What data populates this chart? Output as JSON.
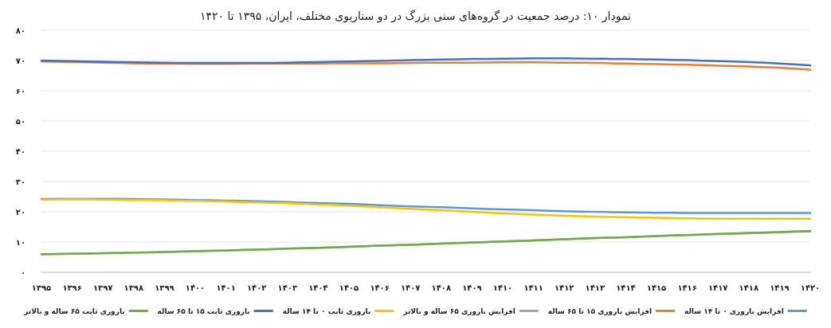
{
  "chart_data": {
    "type": "line",
    "title": "نمودار ۱۰: درصد جمعیت در گروه‌های سنی بزرگ در دو سناریوی مختلف، ایران، ۱۳۹۵ تا ۱۴۲۰",
    "categories": [
      "۱۳۹۵",
      "۱۳۹۶",
      "۱۳۹۷",
      "۱۳۹۸",
      "۱۳۹۹",
      "۱۴۰۰",
      "۱۴۰۱",
      "۱۴۰۲",
      "۱۴۰۳",
      "۱۴۰۴",
      "۱۴۰۵",
      "۱۴۰۶",
      "۱۴۰۷",
      "۱۴۰۸",
      "۱۴۰۹",
      "۱۴۱۰",
      "۱۴۱۱",
      "۱۴۱۲",
      "۱۴۱۳",
      "۱۴۱۴",
      "۱۴۱۵",
      "۱۴۱۶",
      "۱۴۱۷",
      "۱۴۱۸",
      "۱۴۱۹",
      "۱۴۲۰"
    ],
    "series": [
      {
        "name": "افزایش باروری ۰ تا ۱۴ ساله",
        "color": "#5b9bd5",
        "values": [
          24.2,
          24.3,
          24.3,
          24.2,
          24.1,
          23.9,
          23.7,
          23.5,
          23.2,
          22.9,
          22.6,
          22.2,
          21.8,
          21.5,
          21.1,
          20.8,
          20.5,
          20.2,
          20.0,
          19.8,
          19.7,
          19.6,
          19.6,
          19.6,
          19.6,
          19.6
        ]
      },
      {
        "name": "افزایش باروری ۱۵ تا ۶۵ ساله",
        "color": "#ed7d31",
        "values": [
          69.7,
          69.5,
          69.3,
          69.1,
          69.0,
          68.9,
          68.9,
          69.0,
          69.0,
          69.0,
          69.1,
          69.1,
          69.2,
          69.3,
          69.3,
          69.4,
          69.4,
          69.3,
          69.2,
          69.0,
          68.8,
          68.6,
          68.3,
          68.0,
          67.6,
          67.0
        ]
      },
      {
        "name": "افزایش باروری ۶۵ ساله و بالاتر",
        "color": "#a5a5a5",
        "values": [
          6.0,
          6.1,
          6.3,
          6.5,
          6.7,
          7.0,
          7.2,
          7.5,
          7.8,
          8.1,
          8.4,
          8.8,
          9.1,
          9.5,
          9.8,
          10.2,
          10.5,
          10.9,
          11.3,
          11.6,
          12.0,
          12.3,
          12.6,
          12.9,
          13.2,
          13.5
        ]
      },
      {
        "name": "باروری ثابت ۰ تا ۱۴ ساله",
        "color": "#ffc000",
        "values": [
          24.0,
          24.1,
          24.0,
          23.9,
          23.8,
          23.6,
          23.4,
          23.1,
          22.8,
          22.4,
          22.0,
          21.5,
          21.0,
          20.5,
          20.0,
          19.5,
          19.1,
          18.7,
          18.4,
          18.2,
          18.0,
          17.8,
          17.7,
          17.7,
          17.7,
          17.7
        ]
      },
      {
        "name": "باروری ثابت ۱۵ تا ۶۵ ساله",
        "color": "#4472c4",
        "values": [
          70.0,
          69.8,
          69.6,
          69.4,
          69.3,
          69.2,
          69.2,
          69.2,
          69.3,
          69.5,
          69.7,
          69.9,
          70.1,
          70.3,
          70.5,
          70.6,
          70.7,
          70.7,
          70.6,
          70.5,
          70.3,
          70.1,
          69.8,
          69.5,
          69.0,
          68.4
        ]
      },
      {
        "name": "باروری ثابت ۶۵ ساله و بالاتر",
        "color": "#70ad47",
        "values": [
          6.0,
          6.1,
          6.3,
          6.5,
          6.7,
          7.0,
          7.2,
          7.5,
          7.8,
          8.1,
          8.4,
          8.8,
          9.1,
          9.5,
          9.8,
          10.2,
          10.5,
          10.9,
          11.3,
          11.6,
          12.0,
          12.3,
          12.7,
          13.0,
          13.3,
          13.7
        ]
      }
    ],
    "ylim": [
      0,
      80
    ],
    "yticks": [
      {
        "value": 0,
        "label": "۰"
      },
      {
        "value": 10,
        "label": "۱۰"
      },
      {
        "value": 20,
        "label": "۲۰"
      },
      {
        "value": 30,
        "label": "۳۰"
      },
      {
        "value": 40,
        "label": "۴۰"
      },
      {
        "value": 50,
        "label": "۵۰"
      },
      {
        "value": 60,
        "label": "۶۰"
      },
      {
        "value": 70,
        "label": "۷۰"
      },
      {
        "value": 80,
        "label": "۸۰"
      }
    ],
    "grid": "y",
    "legend": "bottom",
    "marker": "none",
    "line_style": "solid"
  }
}
